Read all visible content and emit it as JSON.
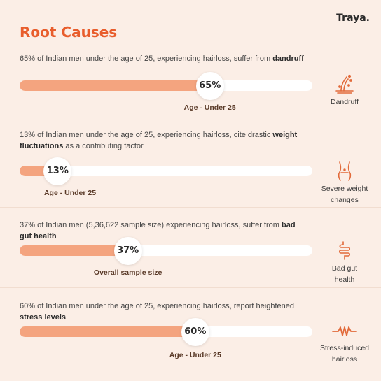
{
  "brand": "Traya.",
  "title": "Root Causes",
  "accent": "#e85d2c",
  "bar_fill": "#f4a47f",
  "sections": [
    {
      "desc_pre": "65% of Indian men under the age of 25, experiencing hairloss, suffer from ",
      "desc_bold": "dandruff",
      "desc_post": "",
      "percent": 65,
      "percent_label": "65%",
      "axis_label": "Age - Under 25",
      "icon": "dandruff-icon",
      "side_label": "Dandruff"
    },
    {
      "desc_pre": "13% of Indian men under the age of 25, experiencing hairloss, cite drastic ",
      "desc_bold": "weight fluctuations",
      "desc_post": " as a contributing factor",
      "percent": 13,
      "percent_label": "13%",
      "axis_label": "Age - Under 25",
      "icon": "waist-icon",
      "side_label": "Severe weight changes"
    },
    {
      "desc_pre": "37% of Indian men (5,36,622 sample size) experiencing hairloss, suffer from ",
      "desc_bold": "bad gut health",
      "desc_post": "",
      "percent": 37,
      "percent_label": "37%",
      "axis_label": "Overall sample size",
      "icon": "gut-icon",
      "side_label": "Bad gut health"
    },
    {
      "desc_pre": "60% of Indian men under the age of 25, experiencing hairloss, report heightened ",
      "desc_bold": "stress levels",
      "desc_post": "",
      "percent": 60,
      "percent_label": "60%",
      "axis_label": "Age - Under 25",
      "icon": "stress-wave-icon",
      "side_label": "Stress-induced hairloss"
    }
  ]
}
